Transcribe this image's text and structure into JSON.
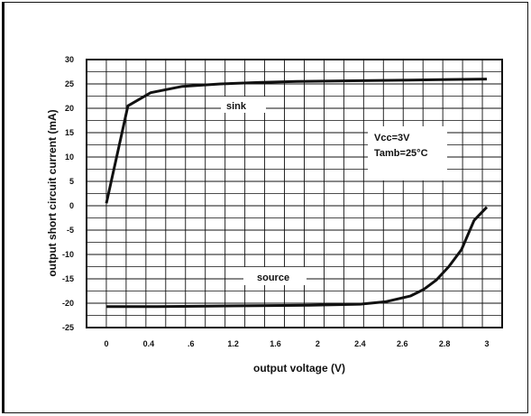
{
  "chart_data": {
    "type": "line",
    "xlabel": "output voltage (V)",
    "ylabel": "output short circuit current (mA)",
    "xlim": [
      0,
      3
    ],
    "ylim": [
      -25,
      30
    ],
    "grid": true,
    "x_ticks": [
      "0",
      "0.4",
      ".6",
      "1.2",
      "1.6",
      "2",
      "2.4",
      "2.6",
      "2.8",
      "3"
    ],
    "y_ticks": [
      "30",
      "25",
      "20",
      "15",
      "10",
      "5",
      "0",
      "-5",
      "-10",
      "-15",
      "-20",
      "-25"
    ],
    "annotations": [
      "Vcc=3V",
      "Tamb=25°C"
    ],
    "series": [
      {
        "name": "sink",
        "x": [
          0,
          0.17,
          0.35,
          0.6,
          0.9,
          1.2,
          1.5,
          1.8,
          2.1,
          2.4,
          2.7,
          3.0
        ],
        "y": [
          0.5,
          20.5,
          23.2,
          24.5,
          25.0,
          25.3,
          25.5,
          25.6,
          25.7,
          25.8,
          25.9,
          26.0
        ]
      },
      {
        "name": "source",
        "x": [
          0,
          0.4,
          0.8,
          1.2,
          1.6,
          2.0,
          2.2,
          2.4,
          2.5,
          2.6,
          2.7,
          2.8,
          2.9,
          3.0
        ],
        "y": [
          -20.7,
          -20.7,
          -20.6,
          -20.5,
          -20.4,
          -20.2,
          -19.7,
          -18.5,
          -17.2,
          -15.3,
          -12.5,
          -9.0,
          -3.0,
          -0.3
        ]
      }
    ]
  }
}
